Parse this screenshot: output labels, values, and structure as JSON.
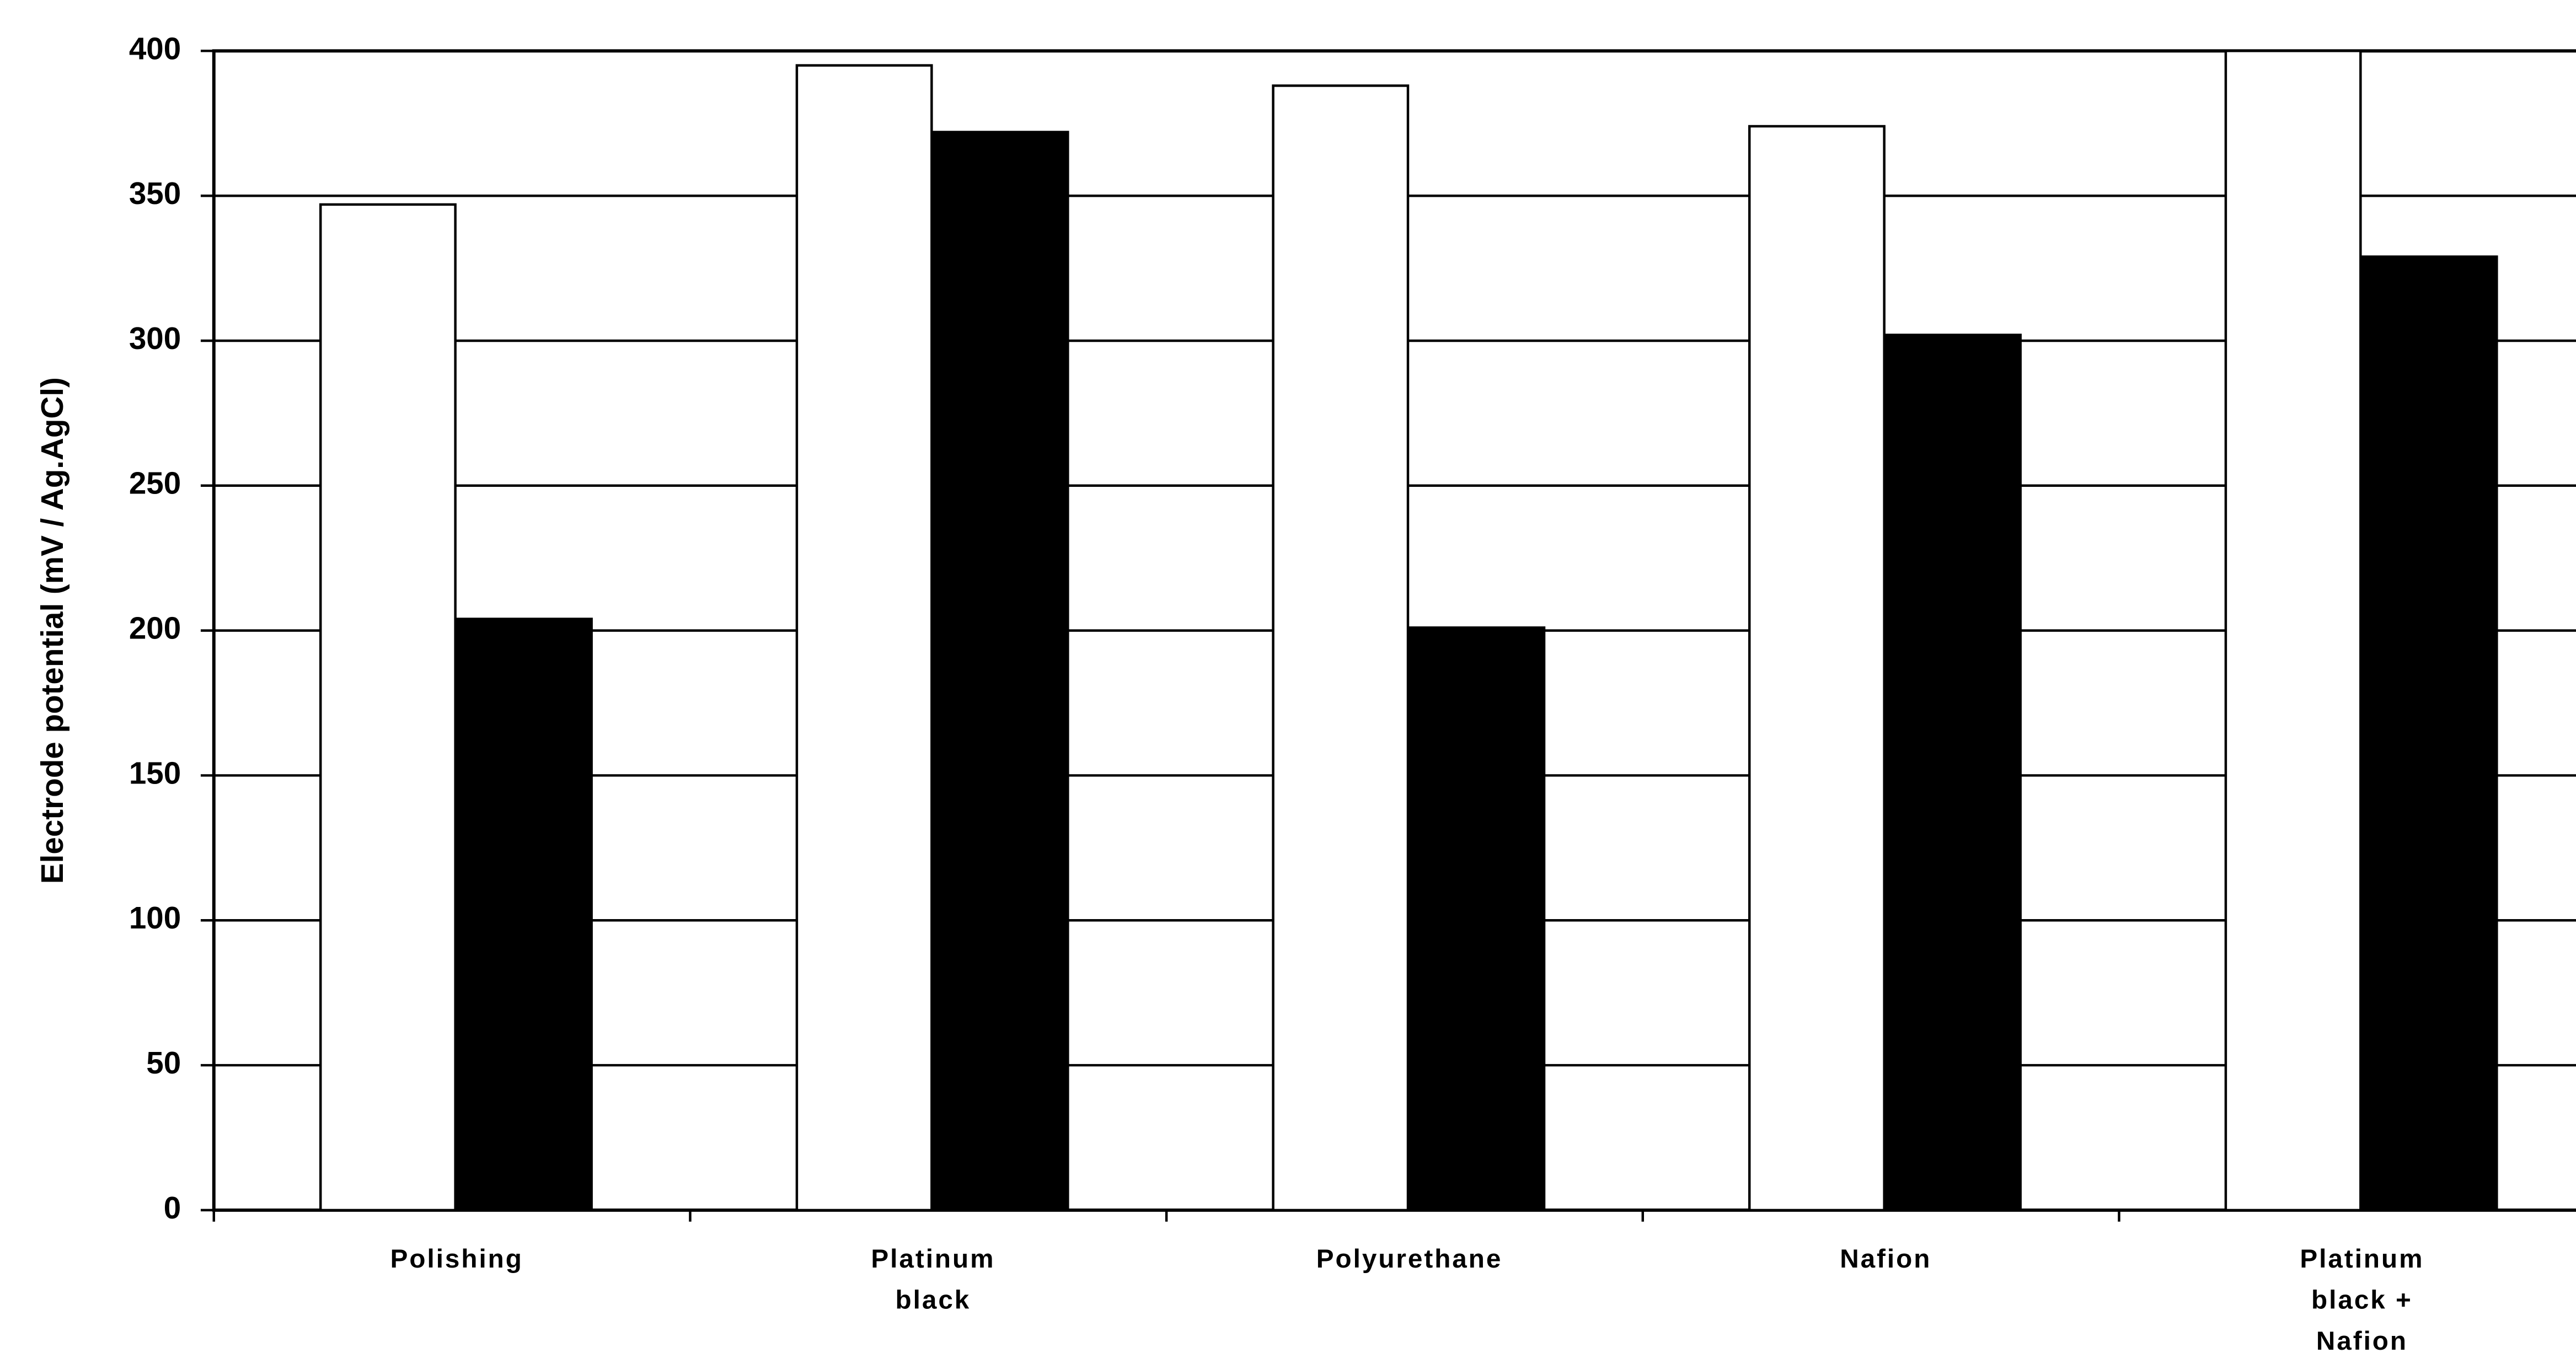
{
  "chart_data": {
    "type": "bar",
    "y_label": "Electrode potential (mV / Ag.AgCl)",
    "categories": [
      "Polishing",
      "Platinum\nblack",
      "Polyurethane",
      "Nafion",
      "Platinum\nblack +\nNafion"
    ],
    "series": [
      {
        "color": "#ffffff",
        "values": [
          347,
          395,
          388,
          374,
          400
        ]
      },
      {
        "color": "#000000",
        "values": [
          204,
          372,
          201,
          302,
          329
        ]
      }
    ],
    "ylim": [
      0,
      400
    ],
    "yticks": [
      0,
      50,
      100,
      150,
      200,
      250,
      300,
      350,
      400
    ],
    "grid": true
  }
}
